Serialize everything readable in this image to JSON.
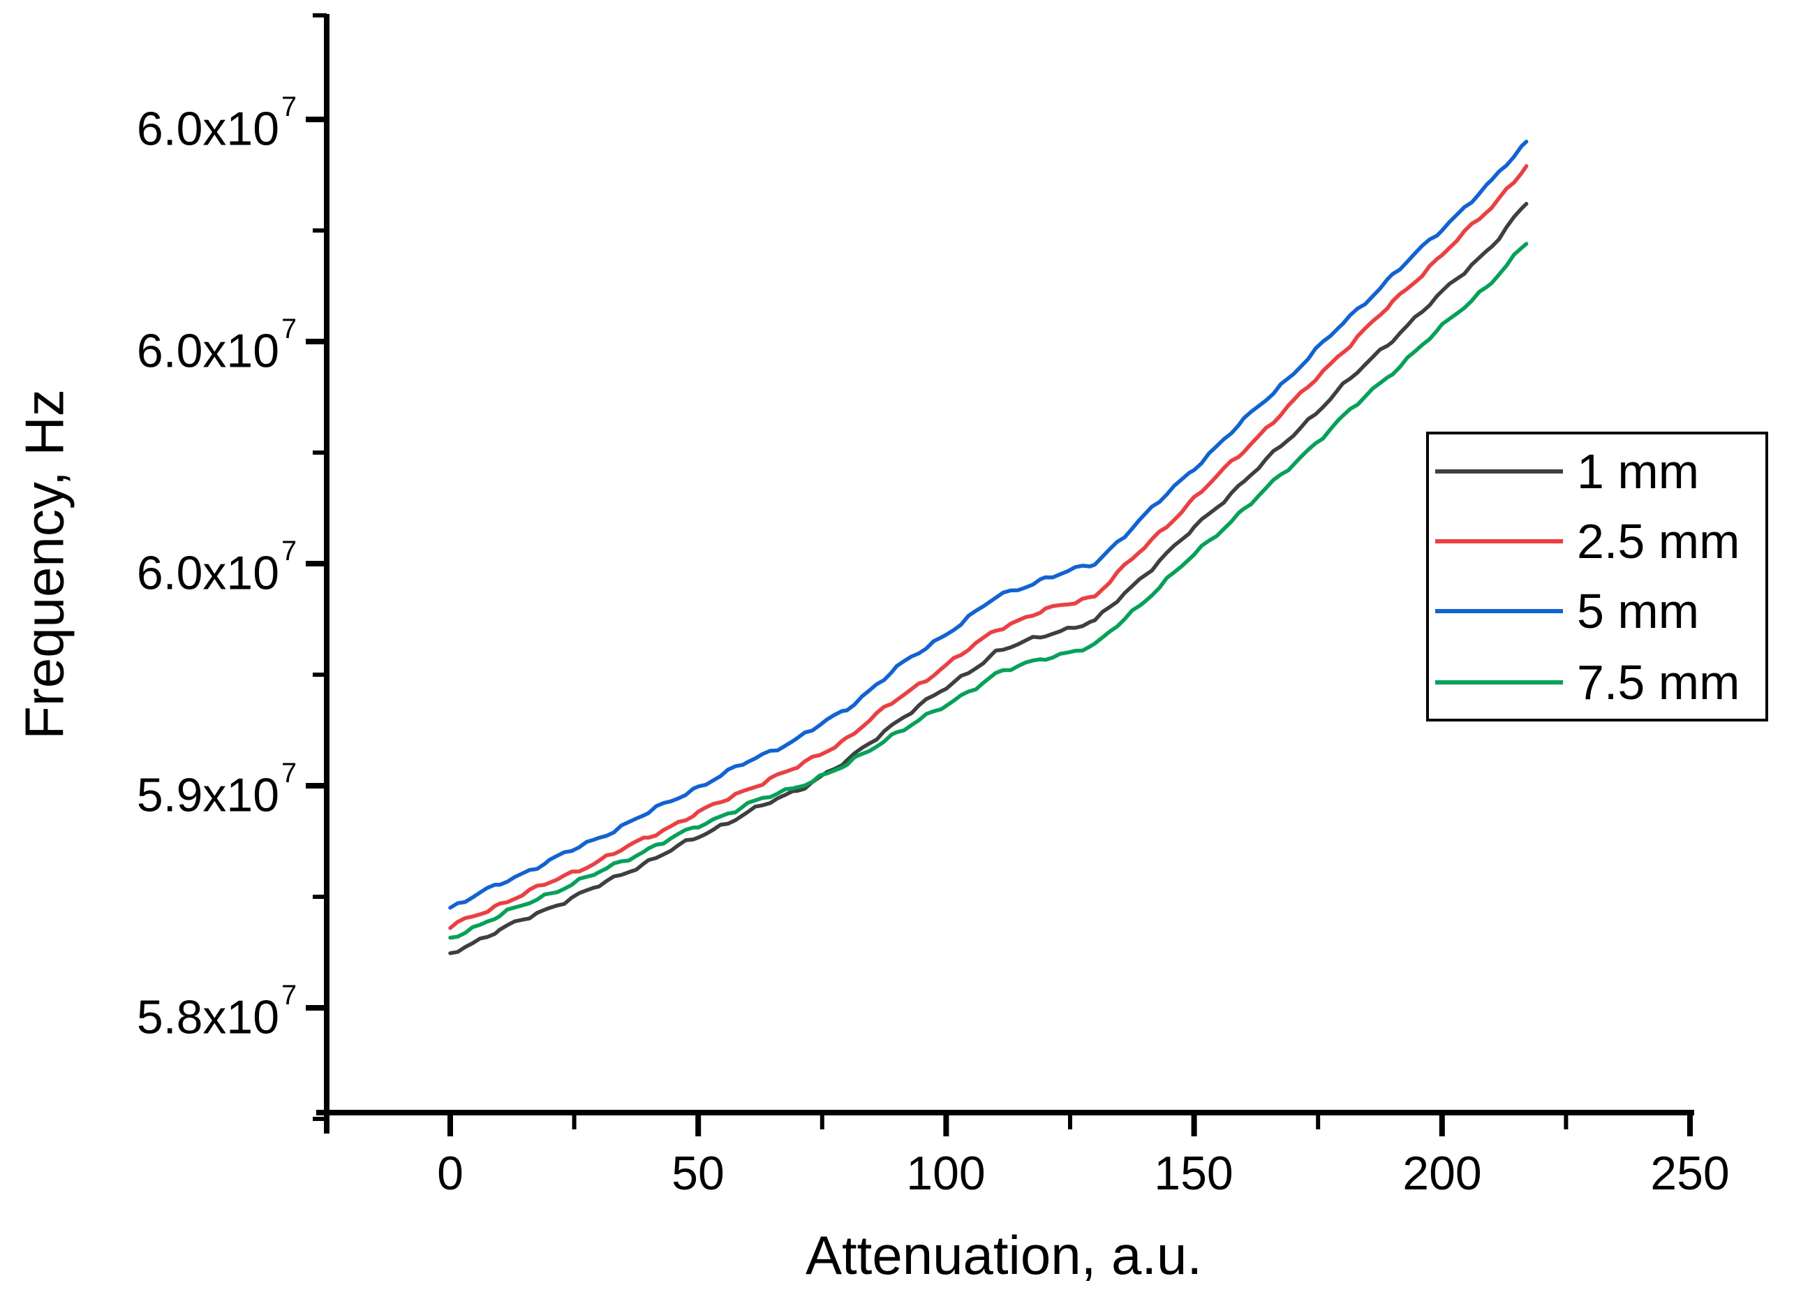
{
  "figure": {
    "y_axis": {
      "title": "Frequency, Hz",
      "tick_labels": [
        {
          "mantissa": "6.0x10",
          "exp": "7"
        },
        {
          "mantissa": "6.0x10",
          "exp": "7"
        },
        {
          "mantissa": "6.0x10",
          "exp": "7"
        },
        {
          "mantissa": "5.9x10",
          "exp": "7"
        },
        {
          "mantissa": "5.8x10",
          "exp": "7"
        }
      ]
    },
    "x_axis": {
      "title": "Attenuation, a.u.",
      "tick_labels": [
        "0",
        "50",
        "100",
        "150",
        "200",
        "250"
      ]
    },
    "legend": {
      "entries": [
        {
          "label": "1 mm",
          "color": "#3f3f3f"
        },
        {
          "label": "2.5 mm",
          "color": "#f43b3d"
        },
        {
          "label": "5 mm",
          "color": "#0e63dc"
        },
        {
          "label": "7.5 mm",
          "color": "#00a456"
        }
      ]
    }
  },
  "chart_data": {
    "type": "line",
    "title": "",
    "xlabel": "Attenuation, a.u.",
    "ylabel": "Frequency, Hz",
    "grid": false,
    "legend_position": "right-center",
    "xlim": [
      -27,
      250
    ],
    "ylim": [
      57760000,
      60240000
    ],
    "x_ticks": [
      0,
      50,
      100,
      150,
      200,
      250
    ],
    "y_tick_values": [
      58000000,
      58500000,
      59000000,
      59500000,
      60000000
    ],
    "y_tick_labels_displayed": [
      "5.8x10⁷",
      "5.9x10⁷",
      "6.0x10⁷",
      "6.0x10⁷",
      "6.0x10⁷"
    ],
    "x": [
      0,
      10,
      20,
      30,
      40,
      50,
      60,
      70,
      80,
      90,
      100,
      110,
      120,
      130,
      140,
      150,
      160,
      170,
      180,
      190,
      200,
      210,
      217
    ],
    "series": [
      {
        "name": "1 mm",
        "color": "#3f3f3f",
        "values": [
          58123000,
          58175000,
          58225000,
          58275000,
          58330000,
          58385000,
          58440000,
          58490000,
          58555000,
          58645000,
          58720000,
          58800000,
          58840000,
          58870000,
          58975000,
          59080000,
          59185000,
          59290000,
          59400000,
          59505000,
          59610000,
          59715000,
          59810000
        ]
      },
      {
        "name": "2.5 mm",
        "color": "#f43b3d",
        "values": [
          58182000,
          58233000,
          58282000,
          58331000,
          58385000,
          58439000,
          58493000,
          58542000,
          58606000,
          58695000,
          58770000,
          58852000,
          58895000,
          58928000,
          59037000,
          59146000,
          59255000,
          59364000,
          59478000,
          59587000,
          59696000,
          59803000,
          59895000
        ]
      },
      {
        "name": "5 mm",
        "color": "#0e63dc",
        "values": [
          58225000,
          58279000,
          58331000,
          58383000,
          58440000,
          58497000,
          58554000,
          58606000,
          58673000,
          58765000,
          58842000,
          58924000,
          58967000,
          59000000,
          59108000,
          59215000,
          59322000,
          59429000,
          59541000,
          59648000,
          59754000,
          59860000,
          59950000
        ]
      },
      {
        "name": "7.5 mm",
        "color": "#00a456",
        "values": [
          58157000,
          58208000,
          58257000,
          58305000,
          58358000,
          58409000,
          58458000,
          58498000,
          58547000,
          58620000,
          58680000,
          58752000,
          58788000,
          58815000,
          58917000,
          59020000,
          59122000,
          59224000,
          59330000,
          59431000,
          59533000,
          59635000,
          59720000
        ]
      }
    ]
  }
}
